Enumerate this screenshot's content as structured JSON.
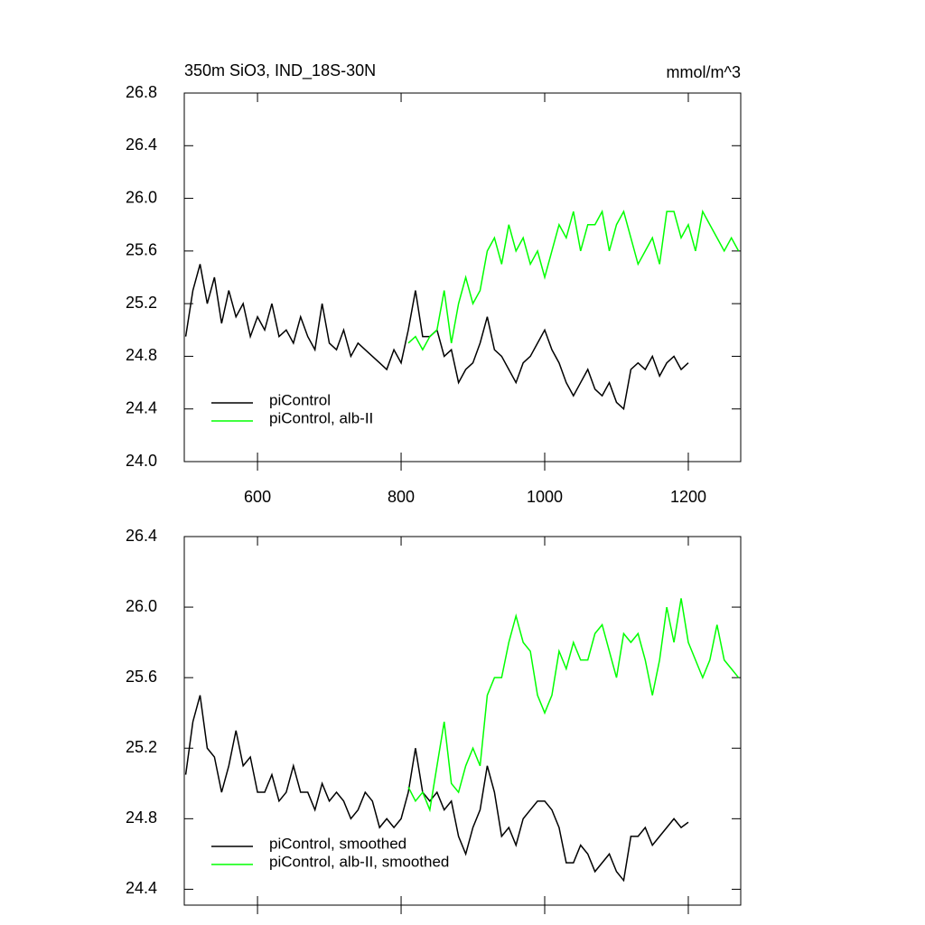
{
  "chart_data": [
    {
      "type": "line",
      "title": "350m SiO3, IND_18S-30N",
      "units_label": "mmol/m^3",
      "xlim": [
        498,
        1273
      ],
      "xticks": [
        600,
        800,
        1000,
        1200
      ],
      "xtick_labels": true,
      "ylim": [
        24.0,
        26.8
      ],
      "yticks": [
        {
          "value": 24.0,
          "label": "24.0"
        },
        24.4,
        24.8,
        25.2,
        25.6,
        {
          "value": 26.0,
          "label": "26.0"
        },
        26.4,
        26.8
      ],
      "legend": "lower left",
      "series": [
        {
          "name": "piControl",
          "color": "#000000",
          "x": [
            500,
            510,
            520,
            530,
            540,
            550,
            560,
            570,
            580,
            590,
            600,
            610,
            620,
            630,
            640,
            650,
            660,
            670,
            680,
            690,
            700,
            710,
            720,
            730,
            740,
            750,
            760,
            770,
            780,
            790,
            800,
            810,
            820,
            830,
            840,
            850,
            860,
            870,
            880,
            890,
            900,
            910,
            920,
            930,
            940,
            950,
            960,
            970,
            980,
            990,
            1000,
            1010,
            1020,
            1030,
            1040,
            1050,
            1060,
            1070,
            1080,
            1090,
            1100,
            1110,
            1120,
            1130,
            1140,
            1150,
            1160,
            1170,
            1180,
            1190,
            1200
          ],
          "values": [
            24.95,
            25.3,
            25.5,
            25.2,
            25.4,
            25.05,
            25.3,
            25.1,
            25.2,
            24.95,
            25.1,
            25.0,
            25.2,
            24.95,
            25.0,
            24.9,
            25.1,
            24.95,
            24.85,
            25.2,
            24.9,
            24.85,
            25.0,
            24.8,
            24.9,
            24.85,
            24.8,
            24.75,
            24.7,
            24.85,
            24.75,
            25.0,
            25.3,
            24.95,
            24.95,
            25.0,
            24.8,
            24.85,
            24.6,
            24.7,
            24.75,
            24.9,
            25.1,
            24.85,
            24.8,
            24.7,
            24.6,
            24.75,
            24.8,
            24.9,
            25.0,
            24.85,
            24.75,
            24.6,
            24.5,
            24.6,
            24.7,
            24.55,
            24.5,
            24.6,
            24.45,
            24.4,
            24.7,
            24.75,
            24.7,
            24.8,
            24.65,
            24.75,
            24.8,
            24.7,
            24.75
          ]
        },
        {
          "name": "piControl, alb-II",
          "color": "#00ff00",
          "x": [
            810,
            820,
            830,
            840,
            850,
            860,
            870,
            880,
            890,
            900,
            910,
            920,
            930,
            940,
            950,
            960,
            970,
            980,
            990,
            1000,
            1010,
            1020,
            1030,
            1040,
            1050,
            1060,
            1070,
            1080,
            1090,
            1100,
            1110,
            1120,
            1130,
            1140,
            1150,
            1160,
            1170,
            1180,
            1190,
            1200,
            1210,
            1220,
            1230,
            1240,
            1250,
            1260,
            1270
          ],
          "values": [
            24.9,
            24.95,
            24.85,
            24.95,
            25.0,
            25.3,
            24.9,
            25.2,
            25.4,
            25.2,
            25.3,
            25.6,
            25.7,
            25.5,
            25.8,
            25.6,
            25.7,
            25.5,
            25.6,
            25.4,
            25.6,
            25.8,
            25.7,
            25.9,
            25.6,
            25.8,
            25.8,
            25.9,
            25.6,
            25.8,
            25.9,
            25.7,
            25.5,
            25.6,
            25.7,
            25.5,
            25.9,
            25.9,
            25.7,
            25.8,
            25.6,
            25.9,
            25.8,
            25.7,
            25.6,
            25.7,
            25.6
          ]
        }
      ]
    },
    {
      "type": "line",
      "xlim": [
        498,
        1273
      ],
      "xticks": [
        600,
        800,
        1000,
        1200
      ],
      "xtick_labels": false,
      "ylim": [
        24.31,
        26.4
      ],
      "yticks": [
        24.4,
        24.8,
        25.2,
        25.6,
        {
          "value": 26.0,
          "label": "26.0"
        },
        26.4
      ],
      "legend": "lower left",
      "series": [
        {
          "name": "piControl, smoothed",
          "color": "#000000",
          "x": [
            500,
            510,
            520,
            530,
            540,
            550,
            560,
            570,
            580,
            590,
            600,
            610,
            620,
            630,
            640,
            650,
            660,
            670,
            680,
            690,
            700,
            710,
            720,
            730,
            740,
            750,
            760,
            770,
            780,
            790,
            800,
            810,
            820,
            830,
            840,
            850,
            860,
            870,
            880,
            890,
            900,
            910,
            920,
            930,
            940,
            950,
            960,
            970,
            980,
            990,
            1000,
            1010,
            1020,
            1030,
            1040,
            1050,
            1060,
            1070,
            1080,
            1090,
            1100,
            1110,
            1120,
            1130,
            1140,
            1150,
            1160,
            1170,
            1180,
            1190,
            1200
          ],
          "values": [
            25.05,
            25.35,
            25.5,
            25.2,
            25.15,
            24.95,
            25.1,
            25.3,
            25.1,
            25.15,
            24.95,
            24.95,
            25.05,
            24.9,
            24.95,
            25.1,
            24.95,
            24.95,
            24.85,
            25.0,
            24.9,
            24.95,
            24.9,
            24.8,
            24.85,
            24.95,
            24.9,
            24.75,
            24.8,
            24.75,
            24.8,
            24.95,
            25.2,
            24.95,
            24.9,
            24.95,
            24.85,
            24.9,
            24.7,
            24.6,
            24.75,
            24.85,
            25.1,
            24.95,
            24.7,
            24.75,
            24.65,
            24.8,
            24.85,
            24.9,
            24.9,
            24.85,
            24.75,
            24.55,
            24.55,
            24.65,
            24.6,
            24.5,
            24.55,
            24.6,
            24.5,
            24.45,
            24.7,
            24.7,
            24.75,
            24.65,
            24.7,
            24.75,
            24.8,
            24.75,
            24.78
          ]
        },
        {
          "name": "piControl, alb-II, smoothed",
          "color": "#00ff00",
          "x": [
            810,
            820,
            830,
            840,
            850,
            860,
            870,
            880,
            890,
            900,
            910,
            920,
            930,
            940,
            950,
            960,
            970,
            980,
            990,
            1000,
            1010,
            1020,
            1030,
            1040,
            1050,
            1060,
            1070,
            1080,
            1090,
            1100,
            1110,
            1120,
            1130,
            1140,
            1150,
            1160,
            1170,
            1180,
            1190,
            1200,
            1210,
            1220,
            1230,
            1240,
            1250,
            1260,
            1270
          ],
          "values": [
            24.98,
            24.9,
            24.95,
            24.85,
            25.1,
            25.35,
            25.0,
            24.95,
            25.1,
            25.2,
            25.1,
            25.5,
            25.6,
            25.6,
            25.8,
            25.95,
            25.8,
            25.75,
            25.5,
            25.4,
            25.5,
            25.75,
            25.65,
            25.8,
            25.7,
            25.7,
            25.85,
            25.9,
            25.75,
            25.6,
            25.85,
            25.8,
            25.85,
            25.7,
            25.5,
            25.7,
            26.0,
            25.8,
            26.05,
            25.8,
            25.7,
            25.6,
            25.7,
            25.9,
            25.7,
            25.65,
            25.6
          ]
        }
      ]
    }
  ]
}
